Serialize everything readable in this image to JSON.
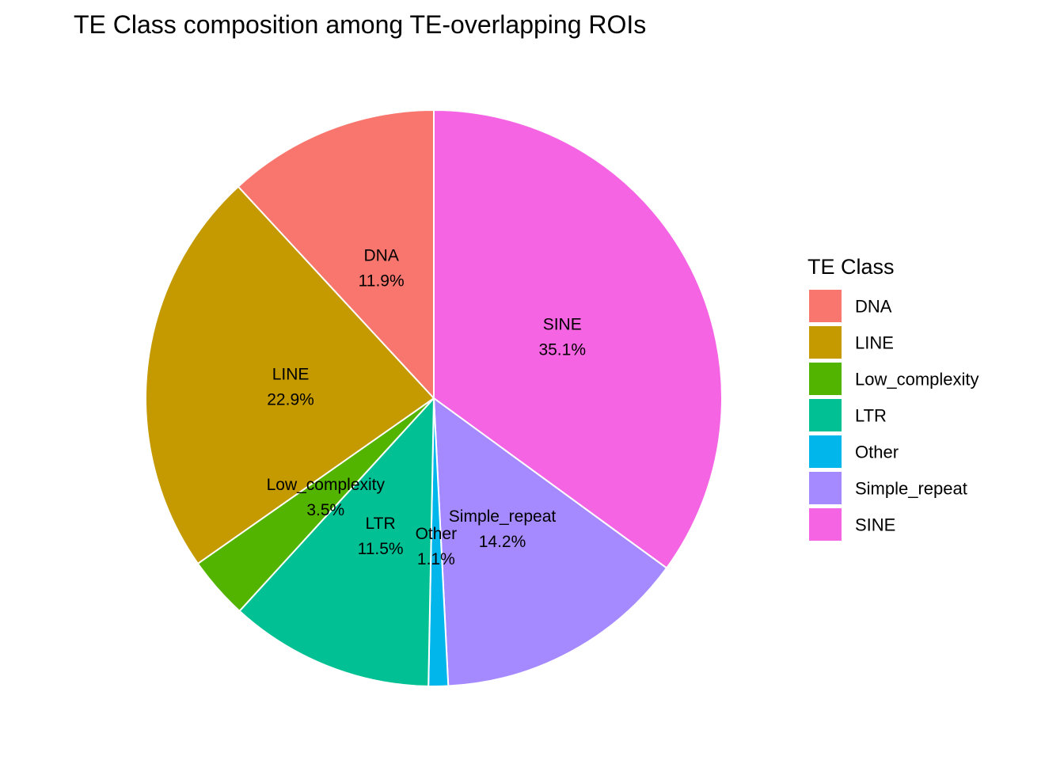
{
  "chart_data": {
    "type": "pie",
    "title": "TE Class composition among TE-overlapping ROIs",
    "legend_title": "TE Class",
    "legend_position": "right",
    "start_angle_deg": 0,
    "direction": "clockwise",
    "slices": [
      {
        "label": "SINE",
        "value": 35.1,
        "pct_label": "35.1%",
        "color": "#F564E3"
      },
      {
        "label": "Simple_repeat",
        "value": 14.2,
        "pct_label": "14.2%",
        "color": "#A58AFF"
      },
      {
        "label": "Other",
        "value": 1.1,
        "pct_label": "1.1%",
        "color": "#00B6EB"
      },
      {
        "label": "LTR",
        "value": 11.5,
        "pct_label": "11.5%",
        "color": "#00C094"
      },
      {
        "label": "Low_complexity",
        "value": 3.5,
        "pct_label": "3.5%",
        "color": "#53B400"
      },
      {
        "label": "LINE",
        "value": 22.9,
        "pct_label": "22.9%",
        "color": "#C49A00"
      },
      {
        "label": "DNA",
        "value": 11.9,
        "pct_label": "11.9%",
        "color": "#F8766D"
      }
    ],
    "legend_entries": [
      {
        "label": "DNA",
        "color": "#F8766D"
      },
      {
        "label": "LINE",
        "color": "#C49A00"
      },
      {
        "label": "Low_complexity",
        "color": "#53B400"
      },
      {
        "label": "LTR",
        "color": "#00C094"
      },
      {
        "label": "Other",
        "color": "#00B6EB"
      },
      {
        "label": "Simple_repeat",
        "color": "#A58AFF"
      },
      {
        "label": "SINE",
        "color": "#F564E3"
      }
    ]
  }
}
